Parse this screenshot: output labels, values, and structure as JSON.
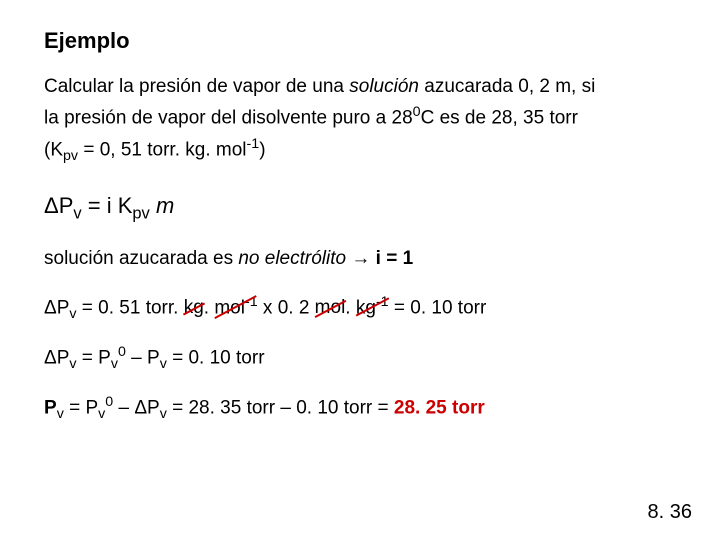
{
  "title": "Ejemplo",
  "problem": {
    "line1a": "Calcular la presión de vapor de una ",
    "line1b": "solución",
    "line1c": " azucarada 0, 2 m, si",
    "line2a": "la presión de vapor del disolvente puro a 28",
    "line2b": "0",
    "line2c": "C es de 28, 35 torr",
    "line3a": "(K",
    "line3b": "pv",
    "line3c": " = 0, 51 torr. kg. mol",
    "line3d": "-1",
    "line3e": ")"
  },
  "formula": {
    "p1": "ΔP",
    "sub_v": "v",
    "p2": " = i K",
    "sub_pv": "pv",
    "p3": " ",
    "m": "m"
  },
  "note": {
    "p1": "solución azucarada es ",
    "p2": "no electrólito",
    "p3": " → ",
    "p4": "i = 1"
  },
  "calc1": {
    "lhs1": "ΔP",
    "lhs_sub": "v",
    "eq": " = 0. 51 torr. ",
    "u1": "kg",
    "dot1": ".",
    "u2": "mol",
    "sup_neg1": "-1",
    "mid": " x 0. 2 ",
    "u3": "mol",
    "dot2": ". ",
    "u4": "kg",
    "sup_neg1b": "-1",
    "rhs": " = 0. 10 torr"
  },
  "calc2": {
    "p1": "ΔP",
    "sub_v1": "v",
    "p2": " = P",
    "sub_v2": "v",
    "sup0": "0",
    "p3": " – P",
    "sub_v3": "v",
    "p4": " = 0. 10 torr"
  },
  "calc3": {
    "p1": "P",
    "sub_v1": "v",
    "p2": " = P",
    "sub_v2": "v",
    "sup0": "0",
    "p3": " – ΔP",
    "sub_v3": "v",
    "p4": " = 28. 35 torr – 0. 10 torr = ",
    "final": "28. 25 torr"
  },
  "pagenum": "8. 36",
  "colors": {
    "strike": "#cc0000",
    "final": "#cc0000",
    "text": "#000000",
    "bg": "#ffffff"
  }
}
